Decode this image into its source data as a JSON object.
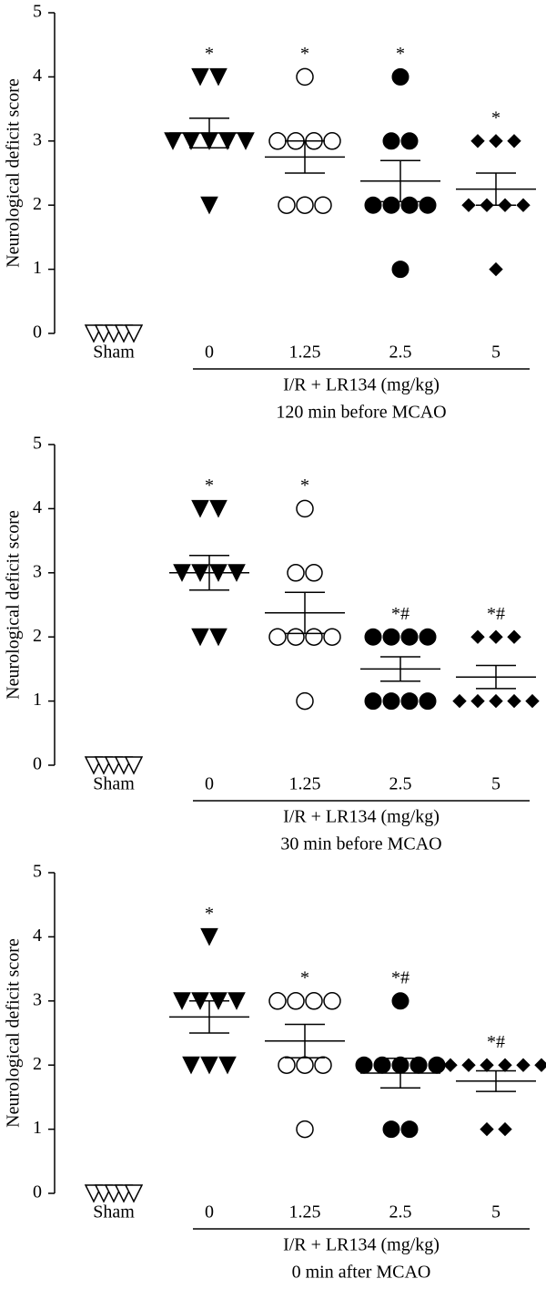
{
  "chart_data": [
    {
      "type": "dot",
      "ylabel": "Neurological deficit score",
      "xlabel": "I/R + LR134 (mg/kg)",
      "subtitle": "120 min before MCAO",
      "categories": [
        "Sham",
        "0",
        "1.25",
        "2.5",
        "5"
      ],
      "ylim": [
        0,
        5
      ],
      "yticks": [
        0,
        1,
        2,
        3,
        4,
        5
      ],
      "color": "#000000",
      "groups": [
        {
          "marker": "triangle-open",
          "points": [
            0,
            0,
            0,
            0,
            0
          ]
        },
        {
          "marker": "triangle",
          "points": [
            4,
            4,
            3,
            3,
            3,
            3,
            3,
            2
          ],
          "mean": 3.125,
          "sem": 0.23,
          "significance": "*"
        },
        {
          "marker": "circle-open",
          "points": [
            4,
            3,
            3,
            3,
            3,
            2,
            2,
            2
          ],
          "mean": 2.75,
          "sem": 0.25,
          "significance": "*"
        },
        {
          "marker": "circle",
          "points": [
            4,
            3,
            3,
            2,
            2,
            2,
            2,
            1
          ],
          "mean": 2.375,
          "sem": 0.32,
          "significance": "*"
        },
        {
          "marker": "diamond",
          "points": [
            3,
            3,
            3,
            2,
            2,
            2,
            2,
            1
          ],
          "mean": 2.25,
          "sem": 0.25,
          "significance": "*"
        }
      ]
    },
    {
      "type": "dot",
      "ylabel": "Neurological deficit score",
      "xlabel": "I/R + LR134 (mg/kg)",
      "subtitle": "30 min before MCAO",
      "categories": [
        "Sham",
        "0",
        "1.25",
        "2.5",
        "5"
      ],
      "ylim": [
        0,
        5
      ],
      "yticks": [
        0,
        1,
        2,
        3,
        4,
        5
      ],
      "color": "#000000",
      "groups": [
        {
          "marker": "triangle-open",
          "points": [
            0,
            0,
            0,
            0,
            0
          ]
        },
        {
          "marker": "triangle",
          "points": [
            4,
            4,
            3,
            3,
            3,
            3,
            2,
            2
          ],
          "mean": 3,
          "sem": 0.27,
          "significance": "*"
        },
        {
          "marker": "circle-open",
          "points": [
            4,
            3,
            3,
            2,
            2,
            2,
            2,
            1
          ],
          "mean": 2.375,
          "sem": 0.32,
          "significance": "*"
        },
        {
          "marker": "circle",
          "points": [
            2,
            2,
            2,
            2,
            1,
            1,
            1,
            1
          ],
          "mean": 1.5,
          "sem": 0.19,
          "significance": "*#"
        },
        {
          "marker": "diamond",
          "points": [
            2,
            2,
            2,
            1,
            1,
            1,
            1,
            1
          ],
          "mean": 1.375,
          "sem": 0.18,
          "significance": "*#"
        }
      ]
    },
    {
      "type": "dot",
      "ylabel": "Neurological deficit score",
      "xlabel": "I/R + LR134 (mg/kg)",
      "subtitle": "0 min after MCAO",
      "categories": [
        "Sham",
        "0",
        "1.25",
        "2.5",
        "5"
      ],
      "ylim": [
        0,
        5
      ],
      "yticks": [
        0,
        1,
        2,
        3,
        4,
        5
      ],
      "color": "#000000",
      "groups": [
        {
          "marker": "triangle-open",
          "points": [
            0,
            0,
            0,
            0,
            0
          ]
        },
        {
          "marker": "triangle",
          "points": [
            4,
            3,
            3,
            3,
            3,
            2,
            2,
            2
          ],
          "mean": 2.75,
          "sem": 0.25,
          "significance": "*"
        },
        {
          "marker": "circle-open",
          "points": [
            3,
            3,
            3,
            3,
            2,
            2,
            2,
            1
          ],
          "mean": 2.375,
          "sem": 0.26,
          "significance": "*"
        },
        {
          "marker": "circle",
          "points": [
            3,
            2,
            2,
            2,
            2,
            2,
            1,
            1
          ],
          "mean": 1.875,
          "sem": 0.23,
          "significance": "*#"
        },
        {
          "marker": "diamond",
          "points": [
            2,
            2,
            2,
            2,
            2,
            2,
            1,
            1
          ],
          "mean": 1.75,
          "sem": 0.16,
          "significance": "*#"
        }
      ]
    }
  ]
}
